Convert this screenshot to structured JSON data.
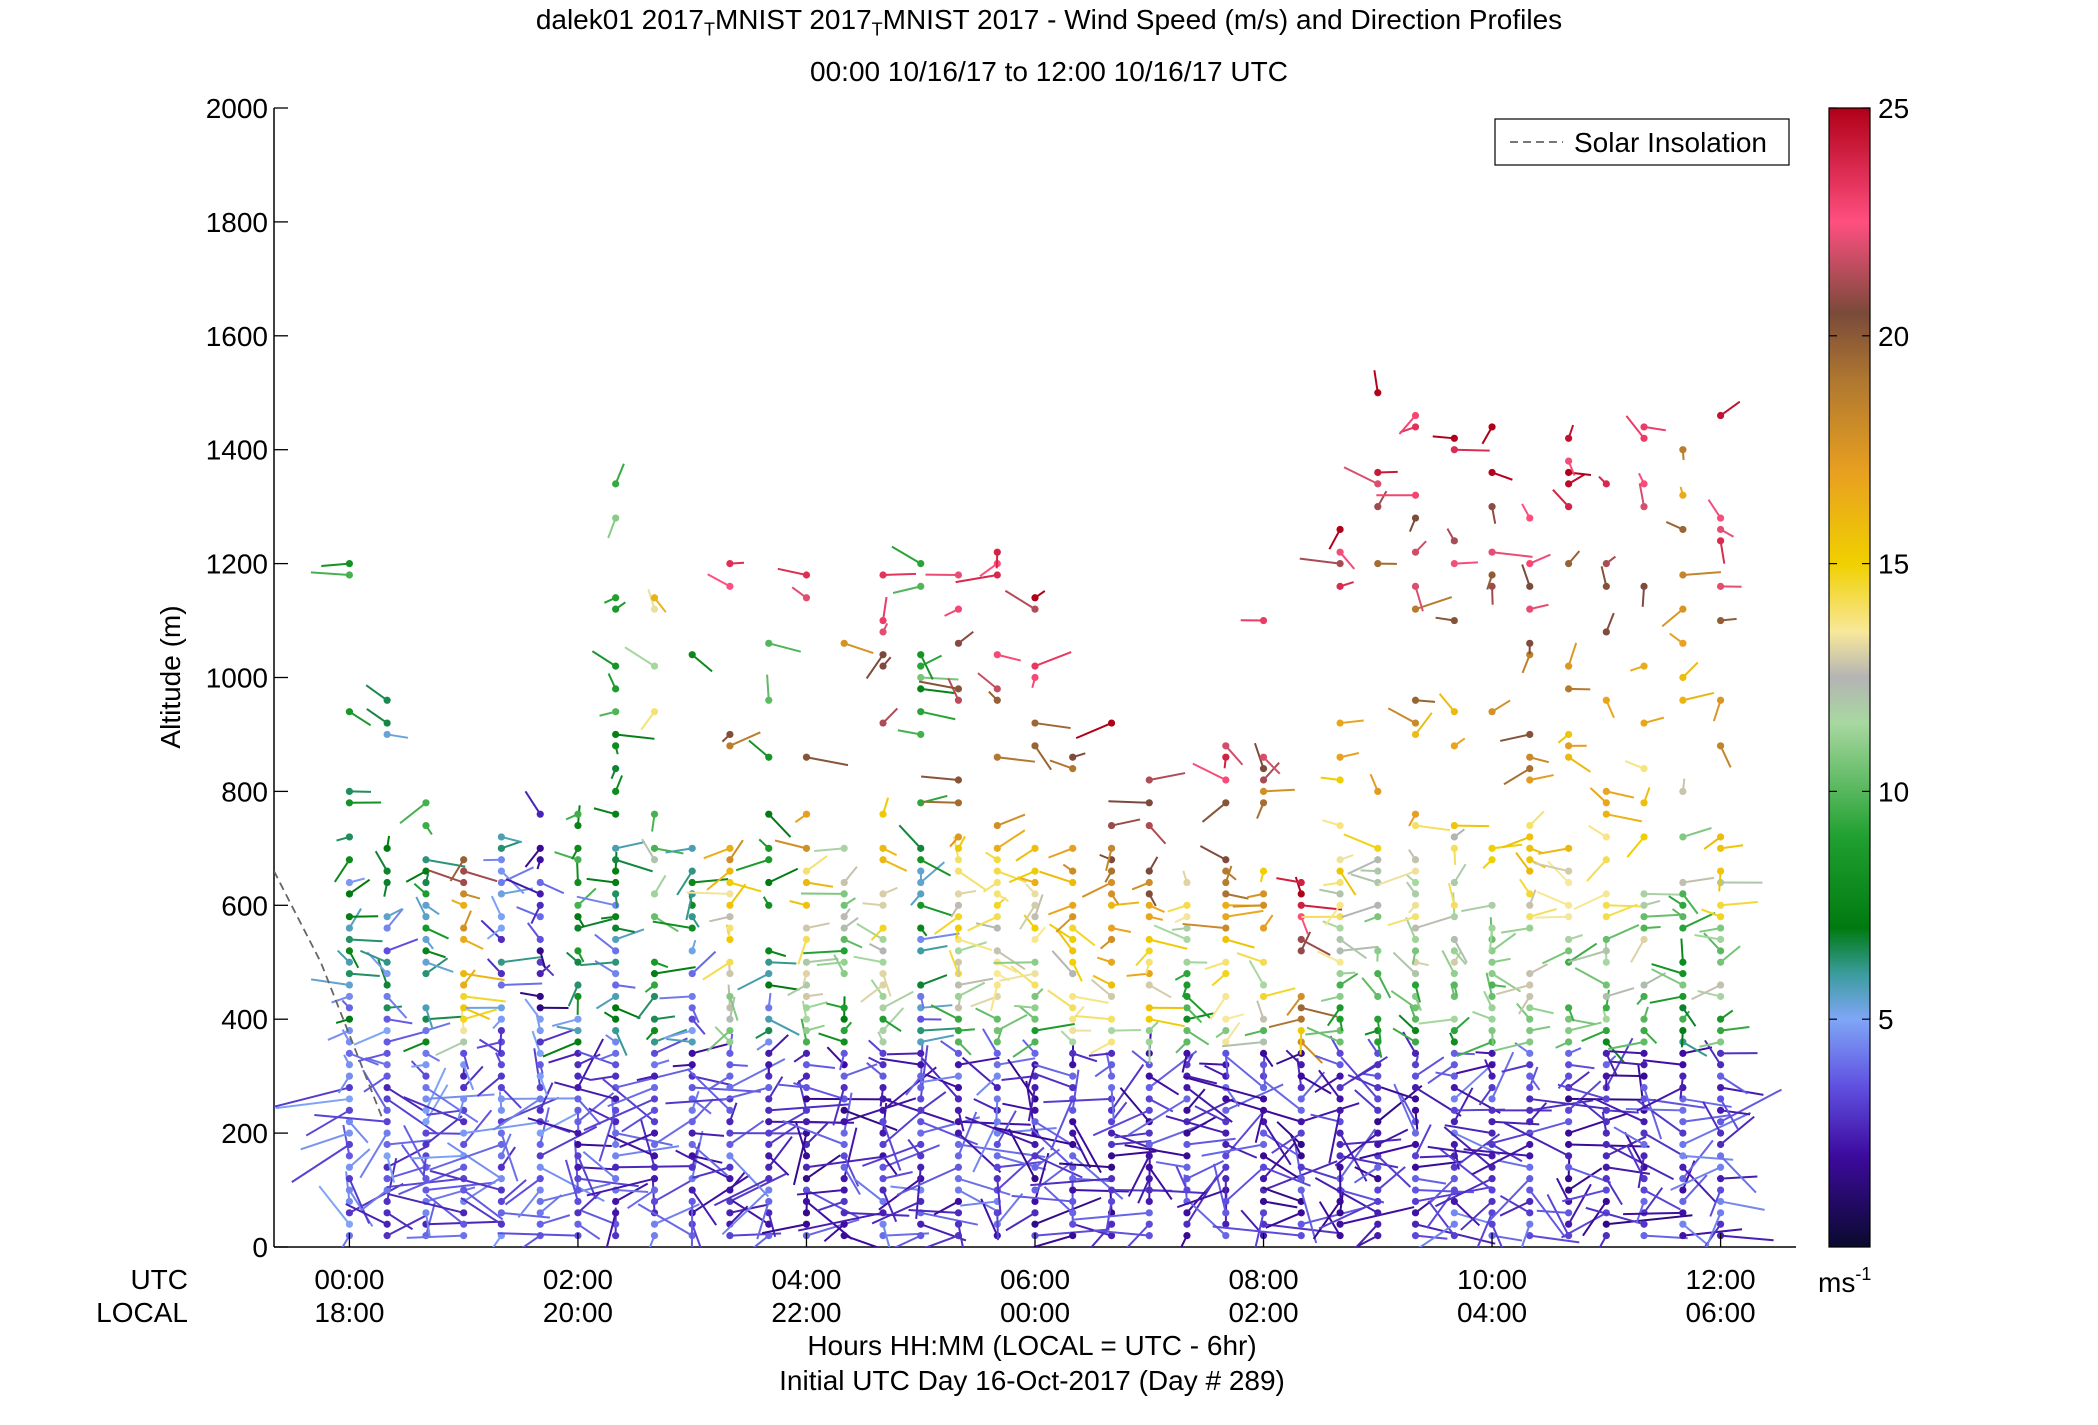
{
  "chart_data": {
    "type": "scatter",
    "title": {
      "site": "dalek01 2017",
      "sub1": "T",
      "mid": "MNIST 2017",
      "sub2": "T",
      "rest": "MNIST 2017 - Wind Speed (m/s) and Direction Profiles"
    },
    "subtitle": "00:00 10/16/17 to 12:00 10/16/17  UTC",
    "ylabel": "Altitude (m)",
    "xlabel": "Hours HH:MM  (LOCAL = UTC - 6hr)",
    "xlabel2": "Initial UTC Day 16-Oct-2017 (Day # 289)",
    "row_label_utc": "UTC",
    "row_label_local": "LOCAL",
    "xlim": [
      -0.66,
      12.66
    ],
    "ylim": [
      0,
      2000
    ],
    "yticks": [
      0,
      200,
      400,
      600,
      800,
      1000,
      1200,
      1400,
      1600,
      1800,
      2000
    ],
    "xticks": [
      {
        "hours": 0,
        "utc": "00:00",
        "local": "18:00"
      },
      {
        "hours": 2,
        "utc": "02:00",
        "local": "20:00"
      },
      {
        "hours": 4,
        "utc": "04:00",
        "local": "22:00"
      },
      {
        "hours": 6,
        "utc": "06:00",
        "local": "00:00"
      },
      {
        "hours": 8,
        "utc": "08:00",
        "local": "02:00"
      },
      {
        "hours": 10,
        "utc": "10:00",
        "local": "04:00"
      },
      {
        "hours": 12,
        "utc": "12:00",
        "local": "06:00"
      }
    ],
    "legend": {
      "label": "Solar Insolation",
      "placement": "top-right",
      "style": "dashed gray line"
    },
    "solar_insolation": [
      {
        "x": -0.66,
        "y": 660
      },
      {
        "x": -0.25,
        "y": 500
      },
      {
        "x": 0.3,
        "y": 220
      }
    ],
    "colorbar": {
      "ticks": [
        5,
        10,
        15,
        20,
        25
      ],
      "range": [
        0,
        25
      ],
      "unit_label": "ms",
      "unit_sup": "-1",
      "stops": [
        {
          "v": 0,
          "c": "#0a0a2e"
        },
        {
          "v": 2,
          "c": "#3d0a9e"
        },
        {
          "v": 3.5,
          "c": "#5f4fe0"
        },
        {
          "v": 5,
          "c": "#7fa6f7"
        },
        {
          "v": 6,
          "c": "#3a9c9c"
        },
        {
          "v": 7,
          "c": "#007a10"
        },
        {
          "v": 9,
          "c": "#20a030"
        },
        {
          "v": 11.5,
          "c": "#a8d8a0"
        },
        {
          "v": 12.5,
          "c": "#b4b4b4"
        },
        {
          "v": 13.5,
          "c": "#f8e89a"
        },
        {
          "v": 15,
          "c": "#f0d000"
        },
        {
          "v": 17,
          "c": "#e8a020"
        },
        {
          "v": 19,
          "c": "#b07830"
        },
        {
          "v": 20.5,
          "c": "#7a4a3a"
        },
        {
          "v": 22.5,
          "c": "#ff4f80"
        },
        {
          "v": 25,
          "c": "#b00018"
        }
      ]
    },
    "profiles": {
      "start_hour": 0,
      "end_hour": 12,
      "step_hours": 0.333,
      "lowest_altitude_m": 20,
      "altitude_step_m": 20
    },
    "series": [
      {
        "name": "Wind profiles (approximate: max profile height per time and representative speed)",
        "x": [
          0,
          0.33,
          0.67,
          1.0,
          1.33,
          1.67,
          2.0,
          2.33,
          2.67,
          3.0,
          3.33,
          3.67,
          4.0,
          4.33,
          4.67,
          5.0,
          5.33,
          5.67,
          6.0,
          6.33,
          6.67,
          7.0,
          7.33,
          7.67,
          8.0,
          8.33,
          8.67,
          9.0,
          9.33,
          9.67,
          10.0,
          10.33,
          10.67,
          11.0,
          11.33,
          11.67,
          12.0
        ],
        "top_altitude_m": [
          1200,
          1020,
          850,
          680,
          830,
          850,
          880,
          1490,
          1200,
          1040,
          1200,
          1100,
          1200,
          1170,
          1310,
          1200,
          1200,
          1240,
          1230,
          1060,
          950,
          940,
          640,
          990,
          1110,
          650,
          1390,
          1520,
          1490,
          1490,
          1490,
          1310,
          1490,
          1490,
          1490,
          1480,
          1490
        ],
        "low_speed_m_s": [
          2.5,
          2.5,
          2.5,
          2.5,
          2.5,
          2.5,
          2.0,
          2.0,
          2.0,
          2.0,
          2.0,
          2.0,
          1.5,
          1.5,
          2.0,
          2.0,
          2.0,
          2.0,
          1.5,
          1.5,
          1.5,
          1.5,
          1.5,
          1.5,
          1.5,
          1.5,
          1.5,
          1.5,
          1.5,
          2.0,
          2.0,
          2.0,
          1.5,
          1.5,
          1.5,
          2.0,
          2.0
        ],
        "upper_speed_m_s": [
          9,
          7,
          9,
          20,
          5,
          4,
          10,
          11,
          15,
          9,
          24,
          9,
          24,
          18,
          25,
          10,
          24,
          24,
          25,
          25,
          25,
          25,
          13,
          25,
          25,
          25,
          25,
          25,
          25,
          24,
          25,
          24,
          25,
          25,
          24,
          20,
          25
        ]
      }
    ]
  }
}
